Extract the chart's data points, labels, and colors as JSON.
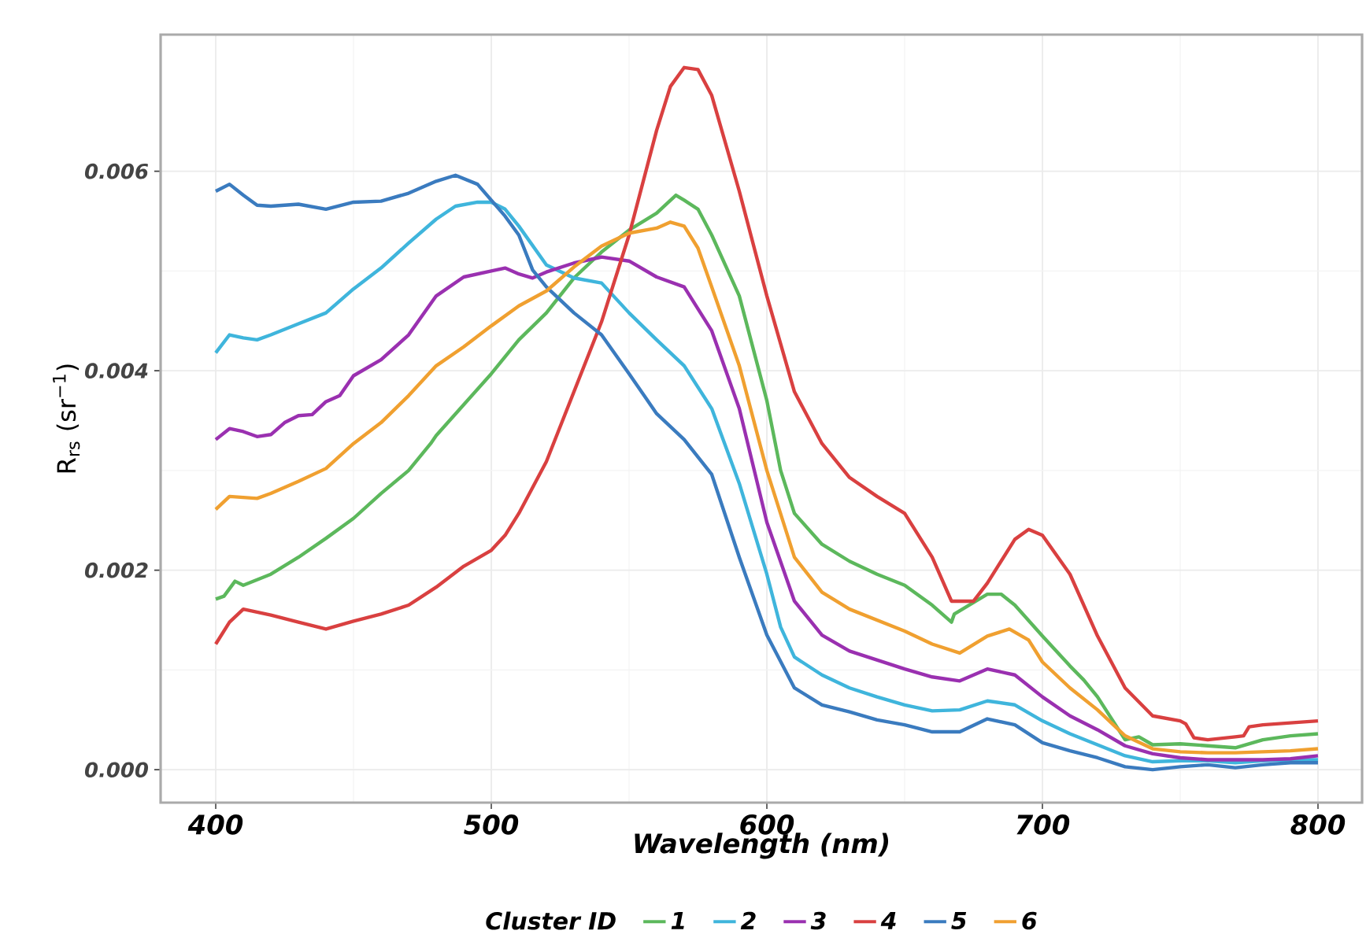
{
  "chart_data": {
    "type": "line",
    "xlabel": "Wavelength (nm)",
    "ylabel": "R$_{rs}$ (sr$^{−1}$)",
    "legend_title": "Cluster ID",
    "legend": "bottom",
    "grid": true,
    "marker": "none",
    "line_style": "solid",
    "xlim": [
      380,
      816
    ],
    "ylim": [
      -0.00033,
      0.00737
    ],
    "xticks": [
      400,
      500,
      600,
      700,
      800
    ],
    "yticks": [
      {
        "value": 0,
        "label": "0.000"
      },
      {
        "value": 0.002,
        "label": "0.002"
      },
      {
        "value": 0.004,
        "label": "0.004"
      },
      {
        "value": 0.006,
        "label": "0.006"
      }
    ],
    "series": [
      {
        "name": "1",
        "color": "#5cb85c",
        "x": [
          400,
          403,
          407,
          410,
          420,
          430,
          440,
          450,
          460,
          470,
          478,
          480,
          490,
          500,
          510,
          520,
          530,
          540,
          550,
          560,
          567,
          570,
          575,
          580,
          590,
          600,
          605,
          610,
          620,
          630,
          640,
          650,
          660,
          667,
          668,
          680,
          685,
          690,
          700,
          710,
          715,
          720,
          730,
          735,
          740,
          750,
          760,
          770,
          780,
          790,
          800
        ],
        "values": [
          0.00171,
          0.00174,
          0.00189,
          0.00185,
          0.00196,
          0.00213,
          0.00232,
          0.00252,
          0.00277,
          0.003,
          0.00327,
          0.00335,
          0.00366,
          0.00397,
          0.00431,
          0.00458,
          0.00493,
          0.00519,
          0.00541,
          0.00558,
          0.00576,
          0.00571,
          0.00562,
          0.00536,
          0.00475,
          0.0037,
          0.003,
          0.00257,
          0.00226,
          0.00209,
          0.00196,
          0.00185,
          0.00165,
          0.00148,
          0.00156,
          0.00176,
          0.00176,
          0.00165,
          0.00134,
          0.00104,
          0.0009,
          0.00073,
          0.0003,
          0.00033,
          0.00025,
          0.00026,
          0.00024,
          0.00022,
          0.0003,
          0.00034,
          0.00036
        ]
      },
      {
        "name": "2",
        "color": "#3fb5dc",
        "x": [
          400,
          405,
          410,
          415,
          420,
          430,
          440,
          450,
          460,
          470,
          480,
          487,
          495,
          500,
          505,
          510,
          520,
          530,
          540,
          550,
          560,
          570,
          580,
          590,
          600,
          605,
          610,
          620,
          630,
          640,
          650,
          660,
          670,
          680,
          690,
          700,
          710,
          720,
          730,
          740,
          750,
          760,
          770,
          780,
          790,
          800
        ],
        "values": [
          0.00418,
          0.00436,
          0.00433,
          0.00431,
          0.00436,
          0.00447,
          0.00458,
          0.00482,
          0.00503,
          0.00528,
          0.00552,
          0.00565,
          0.00569,
          0.00569,
          0.00562,
          0.00545,
          0.00506,
          0.00493,
          0.00488,
          0.00458,
          0.00431,
          0.00405,
          0.00362,
          0.00287,
          0.00196,
          0.00143,
          0.00113,
          0.00095,
          0.00082,
          0.00073,
          0.00065,
          0.00059,
          0.0006,
          0.00069,
          0.00065,
          0.00049,
          0.00036,
          0.00025,
          0.00014,
          8e-05,
          9e-05,
          9e-05,
          7e-05,
          9e-05,
          0.0001,
          0.0001
        ]
      },
      {
        "name": "3",
        "color": "#9a30b0",
        "x": [
          400,
          405,
          410,
          415,
          420,
          425,
          430,
          435,
          440,
          445,
          450,
          460,
          470,
          480,
          490,
          500,
          505,
          510,
          515,
          520,
          530,
          540,
          550,
          560,
          570,
          580,
          590,
          600,
          610,
          620,
          630,
          640,
          650,
          660,
          670,
          680,
          690,
          700,
          710,
          720,
          730,
          740,
          750,
          760,
          770,
          780,
          790,
          800
        ],
        "values": [
          0.00331,
          0.00342,
          0.00339,
          0.00334,
          0.00336,
          0.00348,
          0.00355,
          0.00356,
          0.00369,
          0.00375,
          0.00395,
          0.00411,
          0.00436,
          0.00475,
          0.00494,
          0.005,
          0.00503,
          0.00497,
          0.00493,
          0.00499,
          0.00508,
          0.00514,
          0.0051,
          0.00494,
          0.00484,
          0.0044,
          0.00362,
          0.00248,
          0.00169,
          0.00135,
          0.00119,
          0.0011,
          0.00101,
          0.00093,
          0.00089,
          0.00101,
          0.00095,
          0.00073,
          0.00054,
          0.0004,
          0.00024,
          0.00016,
          0.00012,
          0.0001,
          0.0001,
          0.0001,
          0.00011,
          0.00014
        ]
      },
      {
        "name": "4",
        "color": "#d94040",
        "x": [
          400,
          405,
          410,
          420,
          430,
          440,
          450,
          460,
          470,
          480,
          490,
          500,
          505,
          510,
          520,
          530,
          540,
          550,
          560,
          565,
          570,
          575,
          580,
          590,
          600,
          610,
          620,
          630,
          640,
          650,
          660,
          667,
          675,
          680,
          690,
          695,
          700,
          710,
          720,
          730,
          740,
          750,
          752,
          755,
          760,
          770,
          773,
          775,
          780,
          790,
          800
        ],
        "values": [
          0.00126,
          0.00148,
          0.00161,
          0.00155,
          0.00148,
          0.00141,
          0.00149,
          0.00156,
          0.00165,
          0.00183,
          0.00204,
          0.0022,
          0.00235,
          0.00257,
          0.00309,
          0.00379,
          0.00449,
          0.00536,
          0.00641,
          0.00685,
          0.00704,
          0.00702,
          0.00676,
          0.0058,
          0.00475,
          0.00379,
          0.00327,
          0.00293,
          0.00274,
          0.00257,
          0.00213,
          0.00169,
          0.00169,
          0.00187,
          0.00231,
          0.00241,
          0.00235,
          0.00196,
          0.00134,
          0.00082,
          0.00054,
          0.00049,
          0.00046,
          0.00032,
          0.0003,
          0.00033,
          0.00034,
          0.00043,
          0.00045,
          0.00047,
          0.00049
        ]
      },
      {
        "name": "5",
        "color": "#3a7bbf",
        "x": [
          400,
          405,
          410,
          415,
          420,
          430,
          440,
          450,
          460,
          470,
          480,
          487,
          495,
          500,
          505,
          510,
          515,
          520,
          530,
          540,
          550,
          560,
          570,
          580,
          590,
          600,
          610,
          620,
          630,
          640,
          650,
          660,
          670,
          680,
          690,
          700,
          710,
          720,
          730,
          740,
          750,
          760,
          770,
          780,
          790,
          800
        ],
        "values": [
          0.0058,
          0.00587,
          0.00576,
          0.00566,
          0.00565,
          0.00567,
          0.00562,
          0.00569,
          0.0057,
          0.00578,
          0.0059,
          0.00596,
          0.00587,
          0.00571,
          0.00555,
          0.00536,
          0.00501,
          0.00484,
          0.00458,
          0.00436,
          0.00397,
          0.00357,
          0.00331,
          0.00296,
          0.00213,
          0.00135,
          0.00082,
          0.00065,
          0.00058,
          0.0005,
          0.00045,
          0.00038,
          0.00038,
          0.00051,
          0.00045,
          0.00027,
          0.00019,
          0.00012,
          3e-05,
          0.0,
          3e-05,
          5e-05,
          2e-05,
          5e-05,
          7e-05,
          7e-05
        ]
      },
      {
        "name": "6",
        "color": "#f0a030",
        "x": [
          400,
          405,
          410,
          415,
          420,
          430,
          440,
          450,
          460,
          470,
          480,
          490,
          500,
          510,
          520,
          530,
          540,
          550,
          560,
          565,
          570,
          575,
          580,
          590,
          600,
          610,
          620,
          630,
          640,
          650,
          660,
          670,
          680,
          688,
          695,
          700,
          710,
          720,
          730,
          740,
          750,
          760,
          770,
          780,
          790,
          800
        ],
        "values": [
          0.00261,
          0.00274,
          0.00273,
          0.00272,
          0.00277,
          0.00289,
          0.00302,
          0.00327,
          0.00348,
          0.00375,
          0.00405,
          0.00424,
          0.00445,
          0.00465,
          0.0048,
          0.00504,
          0.00525,
          0.00538,
          0.00543,
          0.00549,
          0.00545,
          0.00523,
          0.00484,
          0.00405,
          0.003,
          0.00213,
          0.00178,
          0.00161,
          0.0015,
          0.00139,
          0.00126,
          0.00117,
          0.00134,
          0.00141,
          0.0013,
          0.00108,
          0.00082,
          0.0006,
          0.00034,
          0.00021,
          0.00018,
          0.00017,
          0.00017,
          0.00018,
          0.00019,
          0.00021
        ]
      }
    ]
  }
}
